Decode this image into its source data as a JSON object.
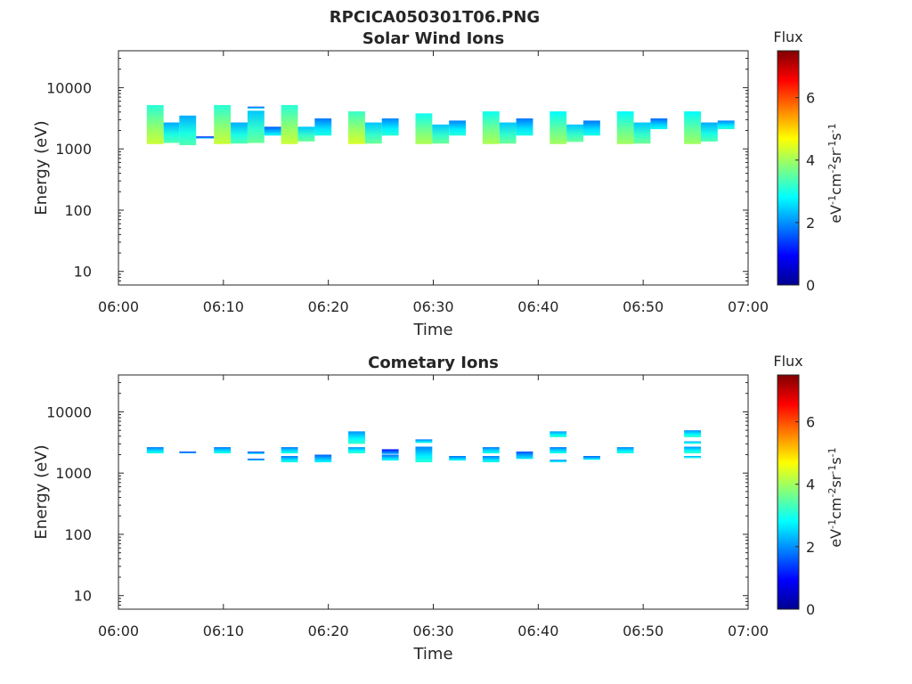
{
  "figure_title": "RPCICA050301T06.PNG",
  "chart_data": [
    {
      "type": "heatmap",
      "title": "Solar Wind Ions",
      "xlabel": "Time",
      "ylabel": "Energy (eV)",
      "x_tick_labels": [
        "06:00",
        "06:10",
        "06:20",
        "06:30",
        "06:40",
        "06:50",
        "07:00"
      ],
      "x_ticks": [
        0,
        10,
        20,
        30,
        40,
        50,
        60
      ],
      "xlim": [
        0,
        60
      ],
      "y_scale": "log",
      "ylim": [
        6,
        40000
      ],
      "y_ticks": [
        10,
        100,
        1000,
        10000
      ],
      "y_tick_labels": [
        "10",
        "100",
        "1000",
        "10000"
      ],
      "colorbar": {
        "title": "Flux",
        "label": "eV-1cm-2sr-1s-1",
        "range": [
          0,
          7.5
        ],
        "ticks": [
          0,
          2,
          4,
          6
        ],
        "tick_labels": [
          "0",
          "2",
          "4",
          "6"
        ],
        "colormap": "jet"
      },
      "cells": [
        {
          "t0": 2.7,
          "t1": 4.3,
          "e0": 1200,
          "e1": 5200,
          "v": 3.9
        },
        {
          "t0": 4.3,
          "t1": 5.8,
          "e0": 1250,
          "e1": 2700,
          "v": 3.0
        },
        {
          "t0": 5.8,
          "t1": 7.4,
          "e0": 1150,
          "e1": 3500,
          "v": 3.0
        },
        {
          "t0": 7.4,
          "t1": 9.1,
          "e0": 1480,
          "e1": 1600,
          "v": 1.9
        },
        {
          "t0": 9.1,
          "t1": 10.7,
          "e0": 1200,
          "e1": 5200,
          "v": 3.9
        },
        {
          "t0": 10.7,
          "t1": 12.3,
          "e0": 1220,
          "e1": 2700,
          "v": 3.0
        },
        {
          "t0": 12.3,
          "t1": 13.9,
          "e0": 1250,
          "e1": 4200,
          "v": 3.2
        },
        {
          "t0": 12.3,
          "t1": 13.9,
          "e0": 4550,
          "e1": 4900,
          "v": 2.2
        },
        {
          "t0": 13.9,
          "t1": 15.5,
          "e0": 1650,
          "e1": 2300,
          "v": 2.4
        },
        {
          "t0": 15.5,
          "t1": 17.1,
          "e0": 1200,
          "e1": 5200,
          "v": 3.9
        },
        {
          "t0": 17.1,
          "t1": 18.7,
          "e0": 1320,
          "e1": 2300,
          "v": 3.2
        },
        {
          "t0": 18.7,
          "t1": 20.3,
          "e0": 1650,
          "e1": 3150,
          "v": 2.6
        },
        {
          "t0": 21.9,
          "t1": 23.5,
          "e0": 1200,
          "e1": 4100,
          "v": 4.0
        },
        {
          "t0": 23.5,
          "t1": 25.1,
          "e0": 1220,
          "e1": 2700,
          "v": 3.2
        },
        {
          "t0": 25.1,
          "t1": 26.7,
          "e0": 1650,
          "e1": 3150,
          "v": 2.7
        },
        {
          "t0": 28.3,
          "t1": 29.9,
          "e0": 1200,
          "e1": 3800,
          "v": 3.7
        },
        {
          "t0": 29.9,
          "t1": 31.5,
          "e0": 1220,
          "e1": 2500,
          "v": 3.2
        },
        {
          "t0": 31.5,
          "t1": 33.1,
          "e0": 1650,
          "e1": 2900,
          "v": 2.7
        },
        {
          "t0": 34.7,
          "t1": 36.3,
          "e0": 1200,
          "e1": 4100,
          "v": 3.7
        },
        {
          "t0": 36.3,
          "t1": 37.9,
          "e0": 1220,
          "e1": 2700,
          "v": 3.2
        },
        {
          "t0": 37.9,
          "t1": 39.5,
          "e0": 1650,
          "e1": 3150,
          "v": 2.6
        },
        {
          "t0": 41.1,
          "t1": 42.7,
          "e0": 1200,
          "e1": 4100,
          "v": 3.6
        },
        {
          "t0": 42.7,
          "t1": 44.3,
          "e0": 1300,
          "e1": 2500,
          "v": 3.2
        },
        {
          "t0": 44.3,
          "t1": 45.9,
          "e0": 1650,
          "e1": 2900,
          "v": 2.6
        },
        {
          "t0": 47.5,
          "t1": 49.1,
          "e0": 1200,
          "e1": 4100,
          "v": 3.6
        },
        {
          "t0": 49.1,
          "t1": 50.7,
          "e0": 1220,
          "e1": 2700,
          "v": 3.2
        },
        {
          "t0": 50.7,
          "t1": 52.3,
          "e0": 2100,
          "e1": 3150,
          "v": 2.5
        },
        {
          "t0": 53.9,
          "t1": 55.5,
          "e0": 1200,
          "e1": 4100,
          "v": 3.6
        },
        {
          "t0": 55.5,
          "t1": 57.1,
          "e0": 1320,
          "e1": 2700,
          "v": 3.0
        },
        {
          "t0": 57.1,
          "t1": 58.7,
          "e0": 2100,
          "e1": 2900,
          "v": 2.7
        }
      ]
    },
    {
      "type": "heatmap",
      "title": "Cometary Ions",
      "xlabel": "Time",
      "ylabel": "Energy (eV)",
      "x_tick_labels": [
        "06:00",
        "06:10",
        "06:20",
        "06:30",
        "06:40",
        "06:50",
        "07:00"
      ],
      "x_ticks": [
        0,
        10,
        20,
        30,
        40,
        50,
        60
      ],
      "xlim": [
        0,
        60
      ],
      "y_scale": "log",
      "ylim": [
        6,
        40000
      ],
      "y_ticks": [
        10,
        100,
        1000,
        10000
      ],
      "y_tick_labels": [
        "10",
        "100",
        "1000",
        "10000"
      ],
      "colorbar": {
        "title": "Flux",
        "label": "eV-1cm-2sr-1s-1",
        "range": [
          0,
          7.5
        ],
        "ticks": [
          0,
          2,
          4,
          6
        ],
        "tick_labels": [
          "0",
          "2",
          "4",
          "6"
        ],
        "colormap": "jet"
      },
      "cells": [
        {
          "t0": 2.7,
          "t1": 4.3,
          "e0": 2100,
          "e1": 2650,
          "v": 2.6
        },
        {
          "t0": 5.8,
          "t1": 7.4,
          "e0": 2100,
          "e1": 2250,
          "v": 2.0
        },
        {
          "t0": 9.1,
          "t1": 10.7,
          "e0": 2100,
          "e1": 2650,
          "v": 2.6
        },
        {
          "t0": 12.3,
          "t1": 13.9,
          "e0": 2050,
          "e1": 2250,
          "v": 2.2
        },
        {
          "t0": 12.3,
          "t1": 13.9,
          "e0": 1600,
          "e1": 1720,
          "v": 2.2
        },
        {
          "t0": 15.5,
          "t1": 17.1,
          "e0": 2100,
          "e1": 2650,
          "v": 2.6
        },
        {
          "t0": 15.5,
          "t1": 17.1,
          "e0": 1500,
          "e1": 1900,
          "v": 2.6
        },
        {
          "t0": 18.7,
          "t1": 20.3,
          "e0": 1500,
          "e1": 2000,
          "v": 2.4
        },
        {
          "t0": 21.9,
          "t1": 23.5,
          "e0": 3000,
          "e1": 4800,
          "v": 2.8
        },
        {
          "t0": 21.9,
          "t1": 23.5,
          "e0": 2100,
          "e1": 2650,
          "v": 2.8
        },
        {
          "t0": 25.1,
          "t1": 26.7,
          "e0": 2050,
          "e1": 2450,
          "v": 1.8
        },
        {
          "t0": 25.1,
          "t1": 26.7,
          "e0": 1600,
          "e1": 2000,
          "v": 2.5
        },
        {
          "t0": 28.3,
          "t1": 29.9,
          "e0": 3100,
          "e1": 3550,
          "v": 2.6
        },
        {
          "t0": 28.3,
          "t1": 29.9,
          "e0": 1500,
          "e1": 2700,
          "v": 2.7
        },
        {
          "t0": 31.5,
          "t1": 33.1,
          "e0": 1600,
          "e1": 1900,
          "v": 2.5
        },
        {
          "t0": 34.7,
          "t1": 36.3,
          "e0": 2100,
          "e1": 2650,
          "v": 2.6
        },
        {
          "t0": 34.7,
          "t1": 36.3,
          "e0": 1500,
          "e1": 1900,
          "v": 2.6
        },
        {
          "t0": 37.9,
          "t1": 39.5,
          "e0": 1700,
          "e1": 2250,
          "v": 2.3
        },
        {
          "t0": 41.1,
          "t1": 42.7,
          "e0": 3850,
          "e1": 4800,
          "v": 2.8
        },
        {
          "t0": 41.1,
          "t1": 42.7,
          "e0": 2100,
          "e1": 2650,
          "v": 2.6
        },
        {
          "t0": 41.1,
          "t1": 42.7,
          "e0": 1500,
          "e1": 1650,
          "v": 2.6
        },
        {
          "t0": 44.3,
          "t1": 45.9,
          "e0": 1650,
          "e1": 1900,
          "v": 2.4
        },
        {
          "t0": 47.5,
          "t1": 49.1,
          "e0": 2100,
          "e1": 2650,
          "v": 2.7
        },
        {
          "t0": 53.9,
          "t1": 55.5,
          "e0": 3850,
          "e1": 5000,
          "v": 2.8
        },
        {
          "t0": 53.9,
          "t1": 55.5,
          "e0": 3000,
          "e1": 3300,
          "v": 2.8
        },
        {
          "t0": 53.9,
          "t1": 55.5,
          "e0": 2100,
          "e1": 2700,
          "v": 2.8
        },
        {
          "t0": 53.9,
          "t1": 55.5,
          "e0": 1750,
          "e1": 1900,
          "v": 2.8
        }
      ]
    }
  ]
}
